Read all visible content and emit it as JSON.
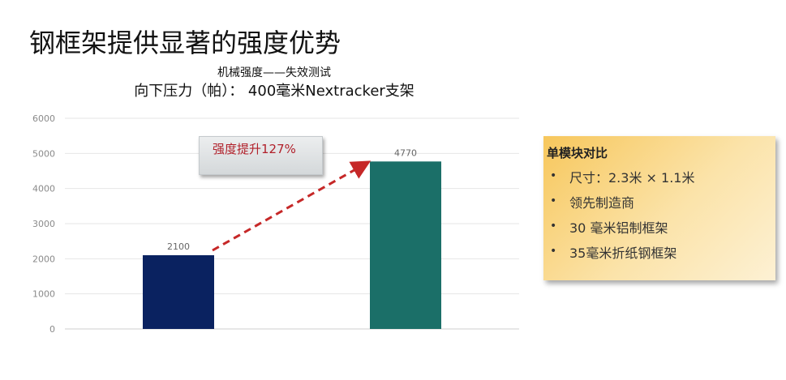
{
  "slide": {
    "title": "钢框架提供显著的强度优势"
  },
  "chart_data": {
    "type": "bar",
    "title": "机械强度——失效测试",
    "subtitle": "向下压力（帕）： 400毫米Nextracker支架",
    "categories": [
      "",
      ""
    ],
    "values": [
      2100,
      4770
    ],
    "data_labels": [
      "2100",
      "4770"
    ],
    "bar_colors": [
      "#0a2260",
      "#1b6f68"
    ],
    "ylim": [
      0,
      6000
    ],
    "yticks": [
      0,
      1000,
      2000,
      3000,
      4000,
      5000,
      6000
    ],
    "grid": true,
    "annotation": "强度提升127%",
    "arrow_color": "#c62828"
  },
  "panel": {
    "title": "单模块对比",
    "items": [
      "尺寸：2.3米 × 1.1米",
      "领先制造商",
      "30 毫米铝制框架",
      "35毫米折纸钢框架"
    ],
    "bullet": "•"
  }
}
